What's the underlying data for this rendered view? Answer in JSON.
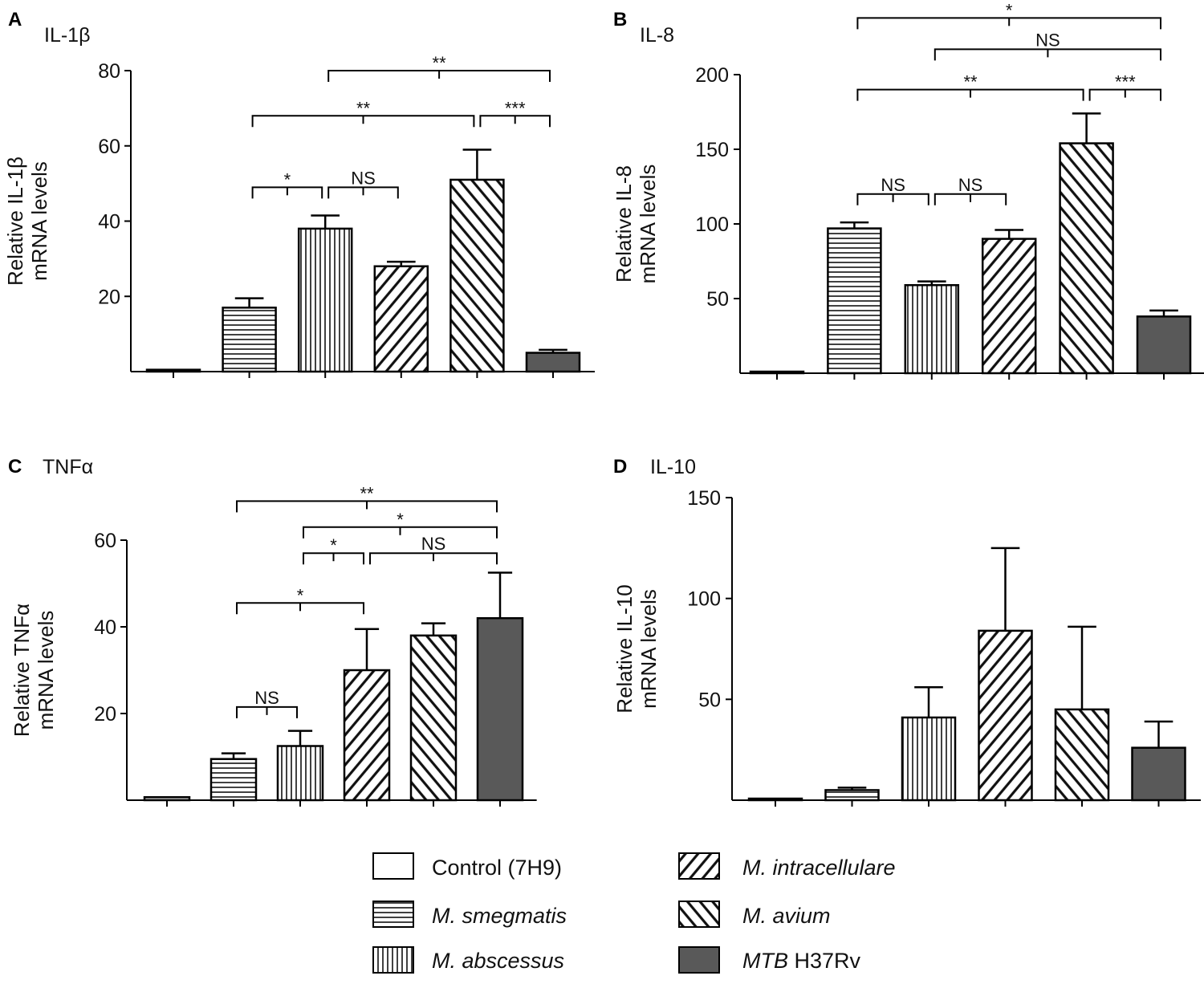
{
  "legend": [
    {
      "label": "Control (7H9)",
      "italic": false,
      "pattern": "none"
    },
    {
      "label": "M. smegmatis",
      "italic": true,
      "pattern": "hlines"
    },
    {
      "label": "M. abscessus",
      "italic": true,
      "pattern": "vlines"
    },
    {
      "label": "M. intracellulare",
      "italic": true,
      "pattern": "diag-right"
    },
    {
      "label": "M. avium",
      "italic": true,
      "pattern": "diag-left"
    },
    {
      "label_parts": [
        "MTB",
        " H37Rv"
      ],
      "italic": false,
      "pattern": "solid"
    }
  ],
  "colors": {
    "solid_fill": "#595959",
    "axis": "#000000",
    "control_fill": "#cccccc"
  },
  "chart_data": [
    {
      "panel": "A",
      "title": "IL-1β",
      "type": "bar",
      "ylabel": [
        "Relative IL-1β",
        "mRNA levels"
      ],
      "ylim": [
        0,
        80
      ],
      "yticks": [
        20,
        40,
        60,
        80
      ],
      "categories": [
        "Control (7H9)",
        "M. smegmatis",
        "M. abscessus",
        "M. intracellulare",
        "M. avium",
        "MTB H37Rv"
      ],
      "values": [
        0.5,
        17,
        38,
        28,
        51,
        5
      ],
      "errors": [
        0,
        2.5,
        3.5,
        1.2,
        8,
        0.8
      ],
      "comparisons": [
        {
          "groups": [
            1,
            2
          ],
          "label": "*",
          "y": 49
        },
        {
          "groups": [
            2,
            3
          ],
          "label": "NS",
          "y": 49
        },
        {
          "groups": [
            1,
            4
          ],
          "label": "**",
          "y": 68
        },
        {
          "groups": [
            4,
            5
          ],
          "label": "***",
          "y": 68
        },
        {
          "groups": [
            2,
            5
          ],
          "label": "**",
          "y": 80
        }
      ]
    },
    {
      "panel": "B",
      "title": "IL-8",
      "type": "bar",
      "ylabel": [
        "Relative IL-8",
        "mRNA levels"
      ],
      "ylim": [
        0,
        200
      ],
      "yticks": [
        50,
        100,
        150,
        200
      ],
      "categories": [
        "Control (7H9)",
        "M. smegmatis",
        "M. abscessus",
        "M. intracellulare",
        "M. avium",
        "MTB H37Rv"
      ],
      "values": [
        0.5,
        97,
        59,
        90,
        154,
        38
      ],
      "errors": [
        0,
        4,
        2.5,
        6,
        20,
        4
      ],
      "comparisons": [
        {
          "groups": [
            1,
            2
          ],
          "label": "NS",
          "y": 120
        },
        {
          "groups": [
            2,
            3
          ],
          "label": "NS",
          "y": 120
        },
        {
          "groups": [
            1,
            4
          ],
          "label": "**",
          "y": 190
        },
        {
          "groups": [
            4,
            5
          ],
          "label": "***",
          "y": 190
        },
        {
          "groups": [
            2,
            5
          ],
          "label": "NS",
          "y": 217
        },
        {
          "groups": [
            1,
            5
          ],
          "label": "*",
          "y": 238
        }
      ]
    },
    {
      "panel": "C",
      "title": "TNFα",
      "type": "bar",
      "ylabel": [
        "Relative TNFα",
        "mRNA levels"
      ],
      "ylim": [
        0,
        60
      ],
      "yticks": [
        20,
        40,
        60
      ],
      "categories": [
        "Control (7H9)",
        "M. smegmatis",
        "M. abscessus",
        "M. intracellulare",
        "M. avium",
        "MTB H37Rv"
      ],
      "values": [
        0.7,
        9.5,
        12.5,
        30,
        38,
        42
      ],
      "errors": [
        0,
        1.3,
        3.5,
        9.5,
        2.8,
        10.5
      ],
      "comparisons": [
        {
          "groups": [
            1,
            2
          ],
          "label": "NS",
          "y": 21.5
        },
        {
          "groups": [
            1,
            3
          ],
          "label": "*",
          "y": 45.5
        },
        {
          "groups": [
            2,
            3
          ],
          "label": "*",
          "y": 57
        },
        {
          "groups": [
            3,
            5
          ],
          "label": "NS",
          "y": 57
        },
        {
          "groups": [
            2,
            5
          ],
          "label": "*",
          "y": 63
        },
        {
          "groups": [
            1,
            5
          ],
          "label": "**",
          "y": 69
        }
      ]
    },
    {
      "panel": "D",
      "title": "IL-10",
      "type": "bar",
      "ylabel": [
        "Relative IL-10",
        "mRNA levels"
      ],
      "ylim": [
        0,
        150
      ],
      "yticks": [
        50,
        100,
        150
      ],
      "categories": [
        "Control (7H9)",
        "M. smegmatis",
        "M. abscessus",
        "M. intracellulare",
        "M. avium",
        "MTB H37Rv"
      ],
      "values": [
        0.5,
        5,
        41,
        84,
        45,
        26
      ],
      "errors": [
        0,
        1.2,
        15,
        41,
        41,
        13
      ],
      "comparisons": []
    }
  ]
}
